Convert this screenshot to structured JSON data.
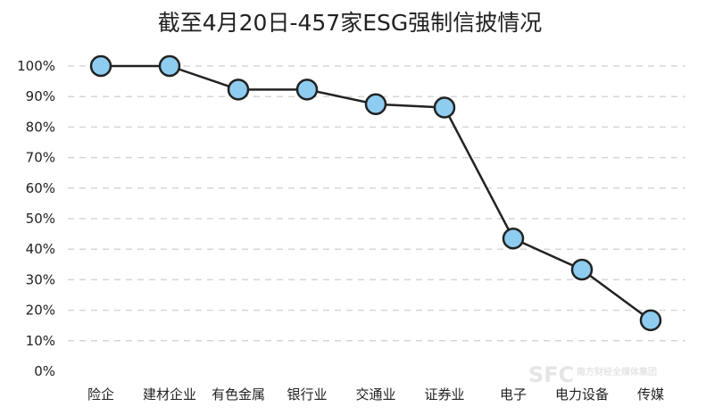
{
  "chart_data": {
    "type": "line",
    "title": "截至4月20日-457家ESG强制信披情况",
    "categories": [
      "险企",
      "建材企业",
      "有色金属",
      "银行业",
      "交通业",
      "证券业",
      "电子",
      "电力设备",
      "传媒"
    ],
    "values": [
      100,
      100,
      92.3,
      92.3,
      87.5,
      86.4,
      43.5,
      33.3,
      16.7
    ],
    "ylim": [
      0,
      100
    ],
    "yticks": [
      0,
      10,
      20,
      30,
      40,
      50,
      60,
      70,
      80,
      90,
      100
    ],
    "ytick_suffix": "%",
    "grid": true,
    "colors": {
      "line": "#222222",
      "marker_fill": "#8ecdf0",
      "marker_edge": "#222222",
      "grid": "#d6d6d6"
    }
  },
  "watermark": {
    "text": "SFC",
    "sub": "南方财经全媒体集团"
  }
}
